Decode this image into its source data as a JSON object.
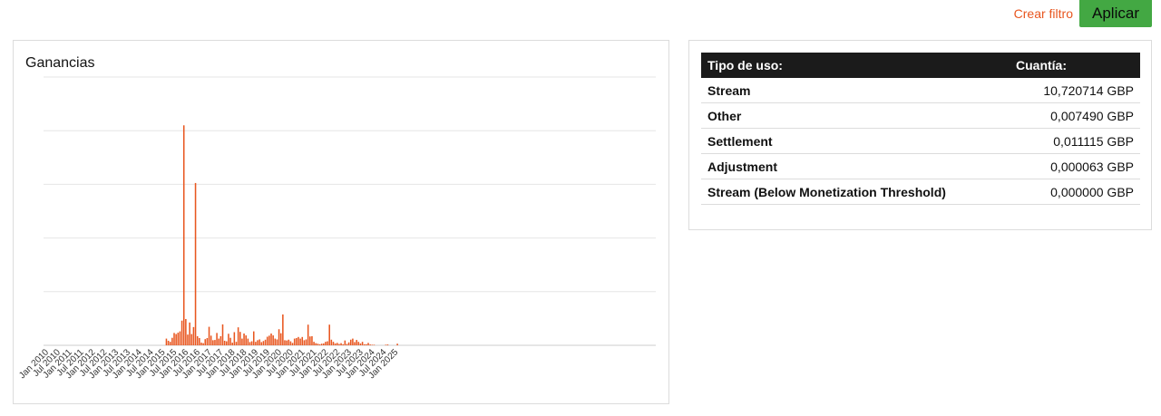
{
  "header": {
    "filter_link": "Crear filtro",
    "apply_button": "Aplicar",
    "accent_color": "#e8561f",
    "button_color": "#43a843"
  },
  "chart_card": {
    "title": "Ganancias"
  },
  "chart_data": {
    "type": "bar",
    "title": "Ganancias",
    "color": "#e8561f",
    "grid": true,
    "ylim": [
      0,
      1
    ],
    "tick_labels": [
      "Jan 2010",
      "Jul 2010",
      "Jan 2011",
      "Jul 2011",
      "Jan 2012",
      "Jul 2012",
      "Jan 2013",
      "Jul 2013",
      "Jan 2014",
      "Jul 2014",
      "Jan 2015",
      "Jul 2015",
      "Jan 2016",
      "Jul 2016",
      "Jan 2017",
      "Jul 2017",
      "Jan 2018",
      "Jul 2018",
      "Jan 2019",
      "Jul 2019",
      "Jan 2020",
      "Jul 2020",
      "Jan 2021",
      "Jul 2021",
      "Jan 2022",
      "Jul 2022",
      "Jan 2023",
      "Jul 2023",
      "Jan 2024",
      "Jul 2024",
      "Jan 2025"
    ],
    "bars": [
      {
        "month": "2015-03",
        "value": 0.025
      },
      {
        "month": "2015-04",
        "value": 0.017
      },
      {
        "month": "2015-05",
        "value": 0.013
      },
      {
        "month": "2015-06",
        "value": 0.028
      },
      {
        "month": "2015-07",
        "value": 0.046
      },
      {
        "month": "2015-08",
        "value": 0.042
      },
      {
        "month": "2015-09",
        "value": 0.047
      },
      {
        "month": "2015-10",
        "value": 0.052
      },
      {
        "month": "2015-11",
        "value": 0.092
      },
      {
        "month": "2015-12",
        "value": 0.82
      },
      {
        "month": "2016-01",
        "value": 0.098
      },
      {
        "month": "2016-02",
        "value": 0.04
      },
      {
        "month": "2016-03",
        "value": 0.085
      },
      {
        "month": "2016-04",
        "value": 0.042
      },
      {
        "month": "2016-05",
        "value": 0.068
      },
      {
        "month": "2016-06",
        "value": 0.605
      },
      {
        "month": "2016-07",
        "value": 0.034
      },
      {
        "month": "2016-08",
        "value": 0.027
      },
      {
        "month": "2016-09",
        "value": 0.01
      },
      {
        "month": "2016-10",
        "value": 0.008
      },
      {
        "month": "2016-11",
        "value": 0.023
      },
      {
        "month": "2016-12",
        "value": 0.027
      },
      {
        "month": "2017-01",
        "value": 0.069
      },
      {
        "month": "2017-02",
        "value": 0.036
      },
      {
        "month": "2017-03",
        "value": 0.019
      },
      {
        "month": "2017-04",
        "value": 0.02
      },
      {
        "month": "2017-05",
        "value": 0.046
      },
      {
        "month": "2017-06",
        "value": 0.025
      },
      {
        "month": "2017-07",
        "value": 0.034
      },
      {
        "month": "2017-08",
        "value": 0.078
      },
      {
        "month": "2017-09",
        "value": 0.017
      },
      {
        "month": "2017-10",
        "value": 0.015
      },
      {
        "month": "2017-11",
        "value": 0.043
      },
      {
        "month": "2017-12",
        "value": 0.028
      },
      {
        "month": "2018-01",
        "value": 0.01
      },
      {
        "month": "2018-02",
        "value": 0.049
      },
      {
        "month": "2018-03",
        "value": 0.013
      },
      {
        "month": "2018-04",
        "value": 0.067
      },
      {
        "month": "2018-05",
        "value": 0.05
      },
      {
        "month": "2018-06",
        "value": 0.025
      },
      {
        "month": "2018-07",
        "value": 0.044
      },
      {
        "month": "2018-08",
        "value": 0.037
      },
      {
        "month": "2018-09",
        "value": 0.025
      },
      {
        "month": "2018-10",
        "value": 0.012
      },
      {
        "month": "2018-11",
        "value": 0.015
      },
      {
        "month": "2018-12",
        "value": 0.052
      },
      {
        "month": "2019-01",
        "value": 0.013
      },
      {
        "month": "2019-02",
        "value": 0.019
      },
      {
        "month": "2019-03",
        "value": 0.022
      },
      {
        "month": "2019-04",
        "value": 0.012
      },
      {
        "month": "2019-05",
        "value": 0.016
      },
      {
        "month": "2019-06",
        "value": 0.021
      },
      {
        "month": "2019-07",
        "value": 0.032
      },
      {
        "month": "2019-08",
        "value": 0.036
      },
      {
        "month": "2019-09",
        "value": 0.044
      },
      {
        "month": "2019-10",
        "value": 0.037
      },
      {
        "month": "2019-11",
        "value": 0.025
      },
      {
        "month": "2019-12",
        "value": 0.022
      },
      {
        "month": "2020-01",
        "value": 0.06
      },
      {
        "month": "2020-02",
        "value": 0.045
      },
      {
        "month": "2020-03",
        "value": 0.115
      },
      {
        "month": "2020-04",
        "value": 0.019
      },
      {
        "month": "2020-05",
        "value": 0.018
      },
      {
        "month": "2020-06",
        "value": 0.021
      },
      {
        "month": "2020-07",
        "value": 0.015
      },
      {
        "month": "2020-08",
        "value": 0.009
      },
      {
        "month": "2020-09",
        "value": 0.025
      },
      {
        "month": "2020-10",
        "value": 0.027
      },
      {
        "month": "2020-11",
        "value": 0.031
      },
      {
        "month": "2020-12",
        "value": 0.025
      },
      {
        "month": "2021-01",
        "value": 0.031
      },
      {
        "month": "2021-02",
        "value": 0.019
      },
      {
        "month": "2021-03",
        "value": 0.022
      },
      {
        "month": "2021-04",
        "value": 0.077
      },
      {
        "month": "2021-05",
        "value": 0.033
      },
      {
        "month": "2021-06",
        "value": 0.034
      },
      {
        "month": "2021-07",
        "value": 0.013
      },
      {
        "month": "2021-08",
        "value": 0.008
      },
      {
        "month": "2021-09",
        "value": 0.006
      },
      {
        "month": "2021-10",
        "value": 0.004
      },
      {
        "month": "2021-11",
        "value": 0.006
      },
      {
        "month": "2021-12",
        "value": 0.007
      },
      {
        "month": "2022-01",
        "value": 0.013
      },
      {
        "month": "2022-02",
        "value": 0.015
      },
      {
        "month": "2022-03",
        "value": 0.077
      },
      {
        "month": "2022-04",
        "value": 0.021
      },
      {
        "month": "2022-05",
        "value": 0.013
      },
      {
        "month": "2022-06",
        "value": 0.007
      },
      {
        "month": "2022-07",
        "value": 0.009
      },
      {
        "month": "2022-08",
        "value": 0.005
      },
      {
        "month": "2022-09",
        "value": 0.008
      },
      {
        "month": "2022-10",
        "value": 0.004
      },
      {
        "month": "2022-11",
        "value": 0.018
      },
      {
        "month": "2022-12",
        "value": 0.005
      },
      {
        "month": "2023-01",
        "value": 0.011
      },
      {
        "month": "2023-02",
        "value": 0.021
      },
      {
        "month": "2023-03",
        "value": 0.025
      },
      {
        "month": "2023-04",
        "value": 0.012
      },
      {
        "month": "2023-05",
        "value": 0.02
      },
      {
        "month": "2023-06",
        "value": 0.013
      },
      {
        "month": "2023-07",
        "value": 0.007
      },
      {
        "month": "2023-08",
        "value": 0.013
      },
      {
        "month": "2023-09",
        "value": 0.004
      },
      {
        "month": "2023-10",
        "value": 0.004
      },
      {
        "month": "2023-11",
        "value": 0.009
      },
      {
        "month": "2023-12",
        "value": 0.003
      },
      {
        "month": "2024-01",
        "value": 0.002
      },
      {
        "month": "2024-02",
        "value": 0.002
      },
      {
        "month": "2024-08",
        "value": 0.002
      },
      {
        "month": "2024-09",
        "value": 0.003
      },
      {
        "month": "2025-02",
        "value": 0.006
      }
    ]
  },
  "table": {
    "headers": {
      "type": "Tipo de uso:",
      "amount": "Cuantía:"
    },
    "rows": [
      {
        "type": "Stream",
        "amount": "10,720714 GBP"
      },
      {
        "type": "Other",
        "amount": "0,007490 GBP"
      },
      {
        "type": "Settlement",
        "amount": "0,011115 GBP"
      },
      {
        "type": "Adjustment",
        "amount": "0,000063 GBP"
      },
      {
        "type": "Stream (Below Monetization Threshold)",
        "amount": "0,000000 GBP"
      }
    ]
  }
}
